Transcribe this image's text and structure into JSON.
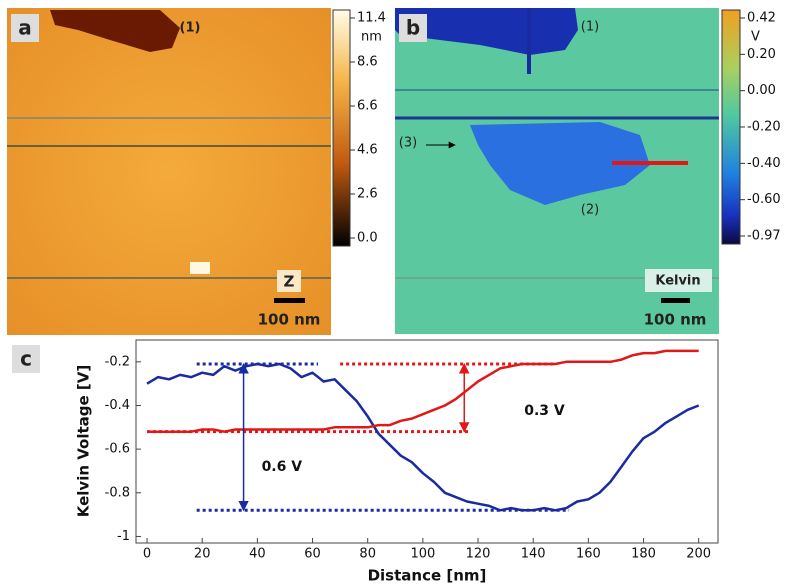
{
  "panels": [
    {
      "label": "a",
      "markers": [
        "(1)"
      ],
      "channel": "Z",
      "scale_bar": "100 nm",
      "colorbar": {
        "unit": "nm",
        "ticks": [
          "11.4",
          "8.6",
          "6.6",
          "4.6",
          "2.6",
          "0.0"
        ]
      }
    },
    {
      "label": "b",
      "markers": [
        "(1)",
        "(2)",
        "(3)"
      ],
      "channel": "Kelvin",
      "scale_bar": "100 nm",
      "colorbar": {
        "unit": "V",
        "ticks": [
          "0.42",
          "0.20",
          "0.00",
          "-0.20",
          "-0.40",
          "-0.60",
          "-0.97"
        ]
      }
    }
  ],
  "chart_data": {
    "type": "line",
    "panel_label": "c",
    "x_label": "Distance [nm]",
    "y_label": "Kelvin Voltage [V]",
    "xlim": [
      -4,
      207
    ],
    "ylim": [
      -1.03,
      -0.1
    ],
    "xticks": [
      0,
      20,
      40,
      60,
      80,
      100,
      120,
      140,
      160,
      180,
      200
    ],
    "yticks": [
      -1,
      -0.8,
      -0.6,
      -0.4,
      -0.2
    ],
    "x": [
      0,
      4,
      8,
      12,
      16,
      20,
      24,
      28,
      32,
      36,
      40,
      44,
      48,
      52,
      56,
      60,
      64,
      68,
      72,
      76,
      80,
      84,
      88,
      92,
      96,
      100,
      104,
      108,
      112,
      116,
      120,
      124,
      128,
      132,
      136,
      140,
      144,
      148,
      152,
      156,
      160,
      164,
      168,
      172,
      176,
      180,
      184,
      188,
      192,
      196,
      200
    ],
    "series": [
      {
        "color": "#1a2aa0",
        "values": [
          -0.3,
          -0.27,
          -0.28,
          -0.26,
          -0.27,
          -0.25,
          -0.26,
          -0.22,
          -0.24,
          -0.22,
          -0.21,
          -0.22,
          -0.21,
          -0.23,
          -0.27,
          -0.25,
          -0.29,
          -0.28,
          -0.33,
          -0.38,
          -0.45,
          -0.53,
          -0.58,
          -0.63,
          -0.66,
          -0.71,
          -0.75,
          -0.8,
          -0.82,
          -0.84,
          -0.85,
          -0.86,
          -0.88,
          -0.87,
          -0.88,
          -0.88,
          -0.87,
          -0.88,
          -0.87,
          -0.84,
          -0.83,
          -0.8,
          -0.75,
          -0.68,
          -0.61,
          -0.55,
          -0.52,
          -0.48,
          -0.45,
          -0.42,
          -0.4
        ]
      },
      {
        "color": "#e01818",
        "values": [
          -0.52,
          -0.52,
          -0.52,
          -0.52,
          -0.52,
          -0.51,
          -0.51,
          -0.52,
          -0.51,
          -0.51,
          -0.51,
          -0.51,
          -0.51,
          -0.51,
          -0.51,
          -0.51,
          -0.51,
          -0.5,
          -0.5,
          -0.5,
          -0.5,
          -0.49,
          -0.49,
          -0.47,
          -0.46,
          -0.44,
          -0.42,
          -0.4,
          -0.37,
          -0.33,
          -0.29,
          -0.26,
          -0.23,
          -0.22,
          -0.21,
          -0.21,
          -0.21,
          -0.21,
          -0.2,
          -0.2,
          -0.2,
          -0.2,
          -0.2,
          -0.19,
          -0.17,
          -0.16,
          -0.16,
          -0.15,
          -0.15,
          -0.15,
          -0.15
        ]
      }
    ],
    "reference_lines": [
      {
        "y": -0.21,
        "x": [
          18,
          62
        ],
        "color": "#1a2aa0"
      },
      {
        "y": -0.88,
        "x": [
          18,
          153
        ],
        "color": "#1a2aa0"
      },
      {
        "y": -0.21,
        "x": [
          70,
          148
        ],
        "color": "#e01818"
      },
      {
        "y": -0.52,
        "x": [
          0,
          117
        ],
        "color": "#e01818"
      }
    ],
    "arrows": [
      {
        "x": 35,
        "y": [
          -0.21,
          -0.88
        ],
        "label": "0.6 V",
        "color": "#1a2aa0"
      },
      {
        "x": 115,
        "y": [
          -0.21,
          -0.52
        ],
        "label": "0.3 V",
        "color": "#e01818"
      }
    ]
  }
}
